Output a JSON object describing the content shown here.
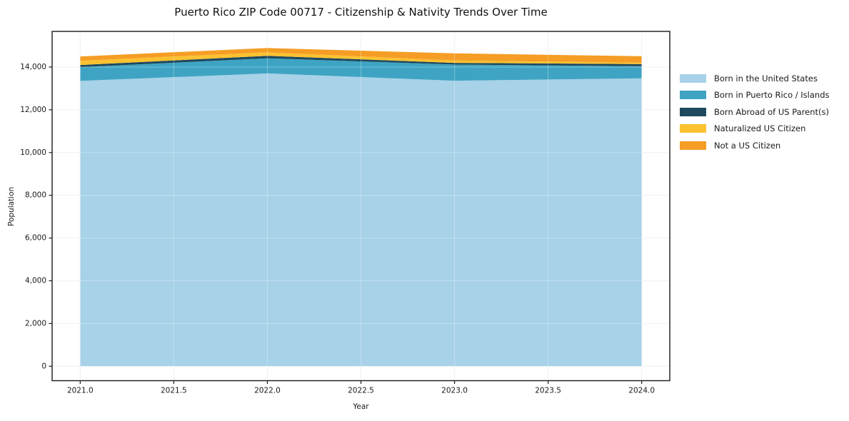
{
  "chart_data": {
    "type": "area",
    "stacked": true,
    "title": "Puerto Rico ZIP Code 00717 - Citizenship & Nativity Trends Over Time",
    "xlabel": "Year",
    "ylabel": "Population",
    "x": [
      2021,
      2022,
      2023,
      2024
    ],
    "series": [
      {
        "name": "Born in the United States",
        "color": "#a7d2e8",
        "values": [
          13350,
          13700,
          13360,
          13470
        ]
      },
      {
        "name": "Born in Puerto Rico / Islands",
        "color": "#3fa4c3",
        "values": [
          645,
          710,
          755,
          570
        ]
      },
      {
        "name": "Born Abroad of US Parent(s)",
        "color": "#1e4a5e",
        "values": [
          100,
          115,
          80,
          100
        ]
      },
      {
        "name": "Naturalized US Citizen",
        "color": "#fcc130",
        "values": [
          200,
          165,
          110,
          65
        ]
      },
      {
        "name": "Not a US Citizen",
        "color": "#f59d24",
        "values": [
          200,
          200,
          335,
          300
        ]
      }
    ],
    "stacked_totals": [
      14495,
      14890,
      14640,
      14505
    ],
    "xtick_values": [
      2021.0,
      2021.5,
      2022.0,
      2022.5,
      2023.0,
      2023.5,
      2024.0
    ],
    "xtick_labels": [
      "2021.0",
      "2021.5",
      "2022.0",
      "2022.5",
      "2023.0",
      "2023.5",
      "2024.0"
    ],
    "ytick_values": [
      0,
      2000,
      4000,
      6000,
      8000,
      10000,
      12000,
      14000
    ],
    "ytick_labels": [
      "0",
      "2,000",
      "4,000",
      "6,000",
      "8,000",
      "10,000",
      "12,000",
      "14,000"
    ],
    "xlim": [
      2020.85,
      2024.15
    ],
    "ylim": [
      -674,
      15668
    ],
    "grid": true,
    "legend_position": "right",
    "legend_frame": false,
    "colors": {
      "background": "#ffffff",
      "gridline": "#ececec",
      "frame": "#1a1a1a",
      "text": "#1a1a1a"
    }
  }
}
